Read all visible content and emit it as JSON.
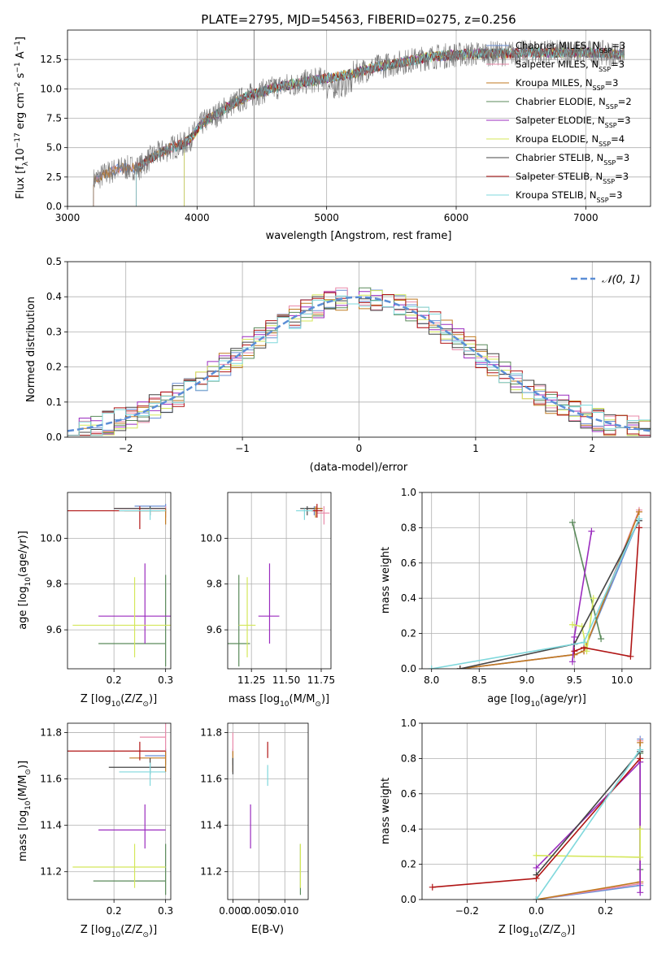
{
  "chart_data": [
    {
      "id": "spectrum",
      "type": "line",
      "title": "PLATE=2795, MJD=54563, FIBERID=0275, z=0.256",
      "xlabel": "wavelength [Angstrom, rest frame]",
      "ylabel_parts": [
        "Flux [f",
        "λ",
        "10",
        "−17",
        " erg cm",
        "−2",
        " s",
        "−1",
        " A",
        "−1",
        "]"
      ],
      "xlim": [
        3000,
        7500
      ],
      "ylim": [
        0,
        15
      ],
      "xticks": [
        3000,
        4000,
        5000,
        6000,
        7000
      ],
      "yticks": [
        0.0,
        2.5,
        5.0,
        7.5,
        10.0,
        12.5
      ],
      "grid": true,
      "vline": 4440,
      "observed_color": "#777777",
      "legend_position": "top-right",
      "legend": [
        {
          "pre": "Chabrier MILES, N",
          "sub": "SSP",
          "post": "=3",
          "color": "#6a8fd6"
        },
        {
          "pre": "Salpeter MILES, N",
          "sub": "SSP",
          "post": "=3",
          "color": "#e98aaa"
        },
        {
          "pre": "Kroupa MILES, N",
          "sub": "SSP",
          "post": "=3",
          "color": "#c07a20"
        },
        {
          "pre": "Chabrier ELODIE, N",
          "sub": "SSP",
          "post": "=2",
          "color": "#5a8a5a"
        },
        {
          "pre": "Salpeter ELODIE, N",
          "sub": "SSP",
          "post": "=3",
          "color": "#9b2cbf"
        },
        {
          "pre": "Kroupa ELODIE, N",
          "sub": "SSP",
          "post": "=4",
          "color": "#d4e75a"
        },
        {
          "pre": "Chabrier STELIB, N",
          "sub": "SSP",
          "post": "=3",
          "color": "#444444"
        },
        {
          "pre": "Salpeter STELIB, N",
          "sub": "SSP",
          "post": "=3",
          "color": "#b01515"
        },
        {
          "pre": "Kroupa STELIB, N",
          "sub": "SSP",
          "post": "=3",
          "color": "#7fd8dc"
        }
      ],
      "model_starts": [
        3200,
        3200,
        3200,
        3900,
        3900,
        3900,
        3530,
        3530,
        3530
      ],
      "continuum": {
        "x": [
          3200,
          3300,
          3400,
          3500,
          3550,
          3650,
          3800,
          3900,
          3950,
          4050,
          4150,
          4250,
          4400,
          4600,
          4800,
          5000,
          5200,
          5400,
          5600,
          5800,
          6000,
          6200,
          6400,
          6600,
          6800,
          7000,
          7200,
          7300
        ],
        "y": [
          2.2,
          2.8,
          3.2,
          3.3,
          3.3,
          4.2,
          5.0,
          5.3,
          5.8,
          7.2,
          7.8,
          8.6,
          9.4,
          10.1,
          10.5,
          10.9,
          11.3,
          11.9,
          12.3,
          12.7,
          12.9,
          13.0,
          13.0,
          13.1,
          13.1,
          13.1,
          13.0,
          12.9
        ]
      }
    },
    {
      "id": "residuals",
      "type": "line",
      "xlabel": "(data-model)/error",
      "ylabel": "Normed distribution",
      "xlim": [
        -2.5,
        2.5
      ],
      "ylim": [
        0,
        0.5
      ],
      "xticks": [
        -2,
        -1,
        0,
        1,
        2
      ],
      "xticklabels": [
        "−2",
        "−1",
        "0",
        "1",
        "2"
      ],
      "yticks": [
        0.0,
        0.1,
        0.2,
        0.3,
        0.4,
        0.5
      ],
      "grid": true,
      "legend_position": "top-right",
      "gauss_label": "𝒩(0, 1)",
      "gauss_color": "#5b8ed6"
    },
    {
      "id": "z-age",
      "type": "scatter",
      "xlabel_parts": [
        "Z [log",
        "10",
        "(Z/Z",
        "⊙",
        ")]"
      ],
      "ylabel_parts": [
        "age  [log",
        "10",
        "(age/yr)]"
      ],
      "xlim": [
        0.11,
        0.31
      ],
      "ylim": [
        9.43,
        10.2
      ],
      "xticks": [
        0.2,
        0.3
      ],
      "yticks": [
        9.6,
        9.8,
        10.0
      ],
      "grid": true,
      "errorbars": [
        {
          "color": "#6a8fd6",
          "x": 0.3,
          "xerr": [
            0.06,
            0.0
          ],
          "y": 10.14,
          "yerr": [
            0.03,
            0.01
          ]
        },
        {
          "color": "#e98aaa",
          "x": 0.3,
          "xerr": [
            0.1,
            0.0
          ],
          "y": 10.13,
          "yerr": [
            0.04,
            0.01
          ]
        },
        {
          "color": "#c07a20",
          "x": 0.3,
          "xerr": [
            0.08,
            0.0
          ],
          "y": 10.12,
          "yerr": [
            0.06,
            0.01
          ]
        },
        {
          "color": "#5a8a5a",
          "x": 0.3,
          "xerr": [
            0.13,
            0.0
          ],
          "y": 9.54,
          "yerr": [
            0.1,
            0.3
          ]
        },
        {
          "color": "#9b2cbf",
          "x": 0.26,
          "xerr": [
            0.09,
            0.05
          ],
          "y": 9.66,
          "yerr": [
            0.12,
            0.23
          ]
        },
        {
          "color": "#d4e75a",
          "x": 0.24,
          "xerr": [
            0.12,
            0.1
          ],
          "y": 9.62,
          "yerr": [
            0.14,
            0.21
          ]
        },
        {
          "color": "#444444",
          "x": 0.27,
          "xerr": [
            0.07,
            0.03
          ],
          "y": 10.13,
          "yerr": [
            0.03,
            0.01
          ]
        },
        {
          "color": "#b01515",
          "x": 0.25,
          "xerr": [
            0.14,
            0.04
          ],
          "y": 10.12,
          "yerr": [
            0.08,
            0.02
          ]
        },
        {
          "color": "#7fd8dc",
          "x": 0.27,
          "xerr": [
            0.06,
            0.03
          ],
          "y": 10.12,
          "yerr": [
            0.04,
            0.01
          ]
        }
      ]
    },
    {
      "id": "mass-age",
      "type": "scatter",
      "xlabel_parts": [
        "mass [log",
        "10",
        "(M/M",
        "⊙",
        ")]"
      ],
      "xlim": [
        11.08,
        11.82
      ],
      "ylim": [
        9.43,
        10.2
      ],
      "xticks": [
        11.25,
        11.5,
        11.75
      ],
      "xticklabels": [
        "11.25",
        "11.50",
        "11.75"
      ],
      "yticks": [
        9.6,
        9.8,
        10.0
      ],
      "grid": true,
      "errorbars": [
        {
          "color": "#6a8fd6",
          "x": 11.7,
          "xerr": [
            0.05,
            0.04
          ],
          "y": 10.13,
          "yerr": [
            0.03,
            0.01
          ]
        },
        {
          "color": "#e98aaa",
          "x": 11.77,
          "xerr": [
            0.05,
            0.04
          ],
          "y": 10.11,
          "yerr": [
            0.05,
            0.03
          ]
        },
        {
          "color": "#c07a20",
          "x": 11.71,
          "xerr": [
            0.05,
            0.05
          ],
          "y": 10.13,
          "yerr": [
            0.04,
            0.01
          ]
        },
        {
          "color": "#5a8a5a",
          "x": 11.16,
          "xerr": [
            0.08,
            0.08
          ],
          "y": 9.54,
          "yerr": [
            0.1,
            0.3
          ]
        },
        {
          "color": "#9b2cbf",
          "x": 11.38,
          "xerr": [
            0.08,
            0.07
          ],
          "y": 9.66,
          "yerr": [
            0.12,
            0.23
          ]
        },
        {
          "color": "#d4e75a",
          "x": 11.22,
          "xerr": [
            0.06,
            0.06
          ],
          "y": 9.62,
          "yerr": [
            0.14,
            0.21
          ]
        },
        {
          "color": "#444444",
          "x": 11.65,
          "xerr": [
            0.05,
            0.05
          ],
          "y": 10.13,
          "yerr": [
            0.03,
            0.01
          ]
        },
        {
          "color": "#b01515",
          "x": 11.72,
          "xerr": [
            0.04,
            0.04
          ],
          "y": 10.12,
          "yerr": [
            0.03,
            0.03
          ]
        },
        {
          "color": "#7fd8dc",
          "x": 11.63,
          "xerr": [
            0.06,
            0.06
          ],
          "y": 10.12,
          "yerr": [
            0.04,
            0.01
          ]
        }
      ]
    },
    {
      "id": "age-weight",
      "type": "line",
      "xlabel_parts": [
        "age  [log",
        "10",
        "(age/yr)]"
      ],
      "ylabel": "mass weight",
      "xlim": [
        7.9,
        10.3
      ],
      "ylim": [
        0,
        1
      ],
      "xticks": [
        8.0,
        8.5,
        9.0,
        9.5,
        10.0
      ],
      "yticks": [
        0.0,
        0.2,
        0.4,
        0.6,
        0.8,
        1.0
      ],
      "grid": true,
      "series": [
        {
          "color": "#6a8fd6",
          "x": [
            8.3,
            9.5,
            9.6,
            10.18
          ],
          "y": [
            0.0,
            0.08,
            0.1,
            0.85
          ]
        },
        {
          "color": "#e98aaa",
          "x": [
            8.3,
            9.5,
            9.6,
            10.18
          ],
          "y": [
            0.0,
            0.08,
            0.1,
            0.9
          ]
        },
        {
          "color": "#c07a20",
          "x": [
            8.3,
            9.5,
            9.6,
            10.18
          ],
          "y": [
            0.0,
            0.08,
            0.1,
            0.89
          ]
        },
        {
          "color": "#5a8a5a",
          "x": [
            9.48,
            9.78
          ],
          "y": [
            0.83,
            0.17
          ]
        },
        {
          "color": "#9b2cbf",
          "x": [
            9.48,
            9.5,
            9.68
          ],
          "y": [
            0.04,
            0.18,
            0.78
          ]
        },
        {
          "color": "#d4e75a",
          "x": [
            9.48,
            9.58,
            9.63,
            9.7
          ],
          "y": [
            0.25,
            0.24,
            0.1,
            0.4
          ]
        },
        {
          "color": "#444444",
          "x": [
            8.3,
            9.5,
            10.18
          ],
          "y": [
            0.0,
            0.14,
            0.84
          ]
        },
        {
          "color": "#b01515",
          "x": [
            9.5,
            9.6,
            10.09,
            10.18
          ],
          "y": [
            0.1,
            0.12,
            0.07,
            0.8
          ]
        },
        {
          "color": "#7fd8dc",
          "x": [
            8.0,
            9.6,
            10.18
          ],
          "y": [
            0.0,
            0.15,
            0.85
          ]
        }
      ]
    },
    {
      "id": "z-mass",
      "type": "scatter",
      "xlabel_parts": [
        "Z [log",
        "10",
        "(Z/Z",
        "⊙",
        ")]"
      ],
      "ylabel_parts": [
        "mass [log",
        "10",
        "(M/M",
        "⊙",
        ")]"
      ],
      "xlim": [
        0.11,
        0.31
      ],
      "ylim": [
        11.08,
        11.84
      ],
      "xticks": [
        0.2,
        0.3
      ],
      "yticks": [
        11.2,
        11.4,
        11.6,
        11.8
      ],
      "grid": true,
      "errorbars": [
        {
          "color": "#6a8fd6",
          "x": 0.3,
          "xerr": [
            0.04,
            0.0
          ],
          "y": 11.7,
          "yerr": [
            0.04,
            0.03
          ]
        },
        {
          "color": "#e98aaa",
          "x": 0.3,
          "xerr": [
            0.05,
            0.0
          ],
          "y": 11.78,
          "yerr": [
            0.1,
            0.06
          ]
        },
        {
          "color": "#c07a20",
          "x": 0.3,
          "xerr": [
            0.07,
            0.0
          ],
          "y": 11.69,
          "yerr": [
            0.06,
            0.03
          ]
        },
        {
          "color": "#5a8a5a",
          "x": 0.3,
          "xerr": [
            0.14,
            0.0
          ],
          "y": 11.16,
          "yerr": [
            0.06,
            0.16
          ]
        },
        {
          "color": "#9b2cbf",
          "x": 0.26,
          "xerr": [
            0.09,
            0.04
          ],
          "y": 11.38,
          "yerr": [
            0.08,
            0.11
          ]
        },
        {
          "color": "#d4e75a",
          "x": 0.24,
          "xerr": [
            0.12,
            0.06
          ],
          "y": 11.22,
          "yerr": [
            0.09,
            0.1
          ]
        },
        {
          "color": "#444444",
          "x": 0.27,
          "xerr": [
            0.08,
            0.03
          ],
          "y": 11.65,
          "yerr": [
            0.03,
            0.04
          ]
        },
        {
          "color": "#b01515",
          "x": 0.25,
          "xerr": [
            0.14,
            0.05
          ],
          "y": 11.72,
          "yerr": [
            0.04,
            0.04
          ]
        },
        {
          "color": "#7fd8dc",
          "x": 0.27,
          "xerr": [
            0.06,
            0.03
          ],
          "y": 11.63,
          "yerr": [
            0.06,
            0.04
          ]
        }
      ]
    },
    {
      "id": "ebv-mass",
      "type": "scatter",
      "xlabel": "E(B-V)",
      "xlim": [
        -0.001,
        0.0145
      ],
      "ylim": [
        11.08,
        11.84
      ],
      "xticks": [
        0.0,
        0.005,
        0.01
      ],
      "xticklabels": [
        "0.000",
        "0.005",
        "0.010"
      ],
      "yticks": [
        11.2,
        11.4,
        11.6,
        11.8
      ],
      "grid": true,
      "errorbars": [
        {
          "color": "#6a8fd6",
          "x": 0.0,
          "xerr": [
            0,
            0
          ],
          "y": 11.7,
          "yerr": [
            0.04,
            0.03
          ]
        },
        {
          "color": "#e98aaa",
          "x": 0.0,
          "xerr": [
            0,
            0
          ],
          "y": 11.78,
          "yerr": [
            0.08,
            0.02
          ]
        },
        {
          "color": "#c07a20",
          "x": 0.0,
          "xerr": [
            0,
            0
          ],
          "y": 11.67,
          "yerr": [
            0.04,
            0.05
          ]
        },
        {
          "color": "#5a8a5a",
          "x": 0.013,
          "xerr": [
            0,
            0
          ],
          "y": 11.16,
          "yerr": [
            0.06,
            0.16
          ]
        },
        {
          "color": "#9b2cbf",
          "x": 0.0034,
          "xerr": [
            0,
            0
          ],
          "y": 11.38,
          "yerr": [
            0.08,
            0.11
          ]
        },
        {
          "color": "#d4e75a",
          "x": 0.013,
          "xerr": [
            0,
            0
          ],
          "y": 11.22,
          "yerr": [
            0.09,
            0.1
          ]
        },
        {
          "color": "#444444",
          "x": 0.0,
          "xerr": [
            0,
            0
          ],
          "y": 11.65,
          "yerr": [
            0.03,
            0.04
          ]
        },
        {
          "color": "#b01515",
          "x": 0.0067,
          "xerr": [
            0,
            0
          ],
          "y": 11.72,
          "yerr": [
            0.03,
            0.04
          ]
        },
        {
          "color": "#7fd8dc",
          "x": 0.0067,
          "xerr": [
            0,
            0
          ],
          "y": 11.62,
          "yerr": [
            0.05,
            0.04
          ]
        }
      ]
    },
    {
      "id": "z-weight",
      "type": "line",
      "xlabel_parts": [
        "Z [log",
        "10",
        "(Z/Z",
        "⊙",
        ")]"
      ],
      "ylabel": "mass weight",
      "xlim": [
        -0.33,
        0.33
      ],
      "ylim": [
        0,
        1
      ],
      "xticks": [
        -0.2,
        0.0,
        0.2
      ],
      "xticklabels": [
        "−0.2",
        "0.0",
        "0.2"
      ],
      "yticks": [
        0.0,
        0.2,
        0.4,
        0.6,
        0.8,
        1.0
      ],
      "grid": true,
      "series": [
        {
          "color": "#6a8fd6",
          "x": [
            0.0,
            0.3,
            0.3
          ],
          "y": [
            0.0,
            0.08,
            0.91
          ]
        },
        {
          "color": "#e98aaa",
          "x": [
            0.0,
            0.3,
            0.3
          ],
          "y": [
            0.0,
            0.09,
            0.9
          ]
        },
        {
          "color": "#c07a20",
          "x": [
            0.0,
            0.3,
            0.3
          ],
          "y": [
            0.0,
            0.1,
            0.89
          ]
        },
        {
          "color": "#5a8a5a",
          "x": [
            0.3,
            0.3
          ],
          "y": [
            0.17,
            0.83
          ]
        },
        {
          "color": "#9b2cbf",
          "x": [
            0.0,
            0.3,
            0.3
          ],
          "y": [
            0.18,
            0.78,
            0.04
          ]
        },
        {
          "color": "#d4e75a",
          "x": [
            0.0,
            0.3,
            0.3
          ],
          "y": [
            0.25,
            0.24,
            0.4
          ]
        },
        {
          "color": "#444444",
          "x": [
            0.0,
            0.3
          ],
          "y": [
            0.14,
            0.84
          ]
        },
        {
          "color": "#b01515",
          "x": [
            -0.3,
            0.0,
            0.3
          ],
          "y": [
            0.07,
            0.12,
            0.8
          ]
        },
        {
          "color": "#7fd8dc",
          "x": [
            0.0,
            0.3
          ],
          "y": [
            0.0,
            0.85
          ]
        }
      ]
    }
  ]
}
